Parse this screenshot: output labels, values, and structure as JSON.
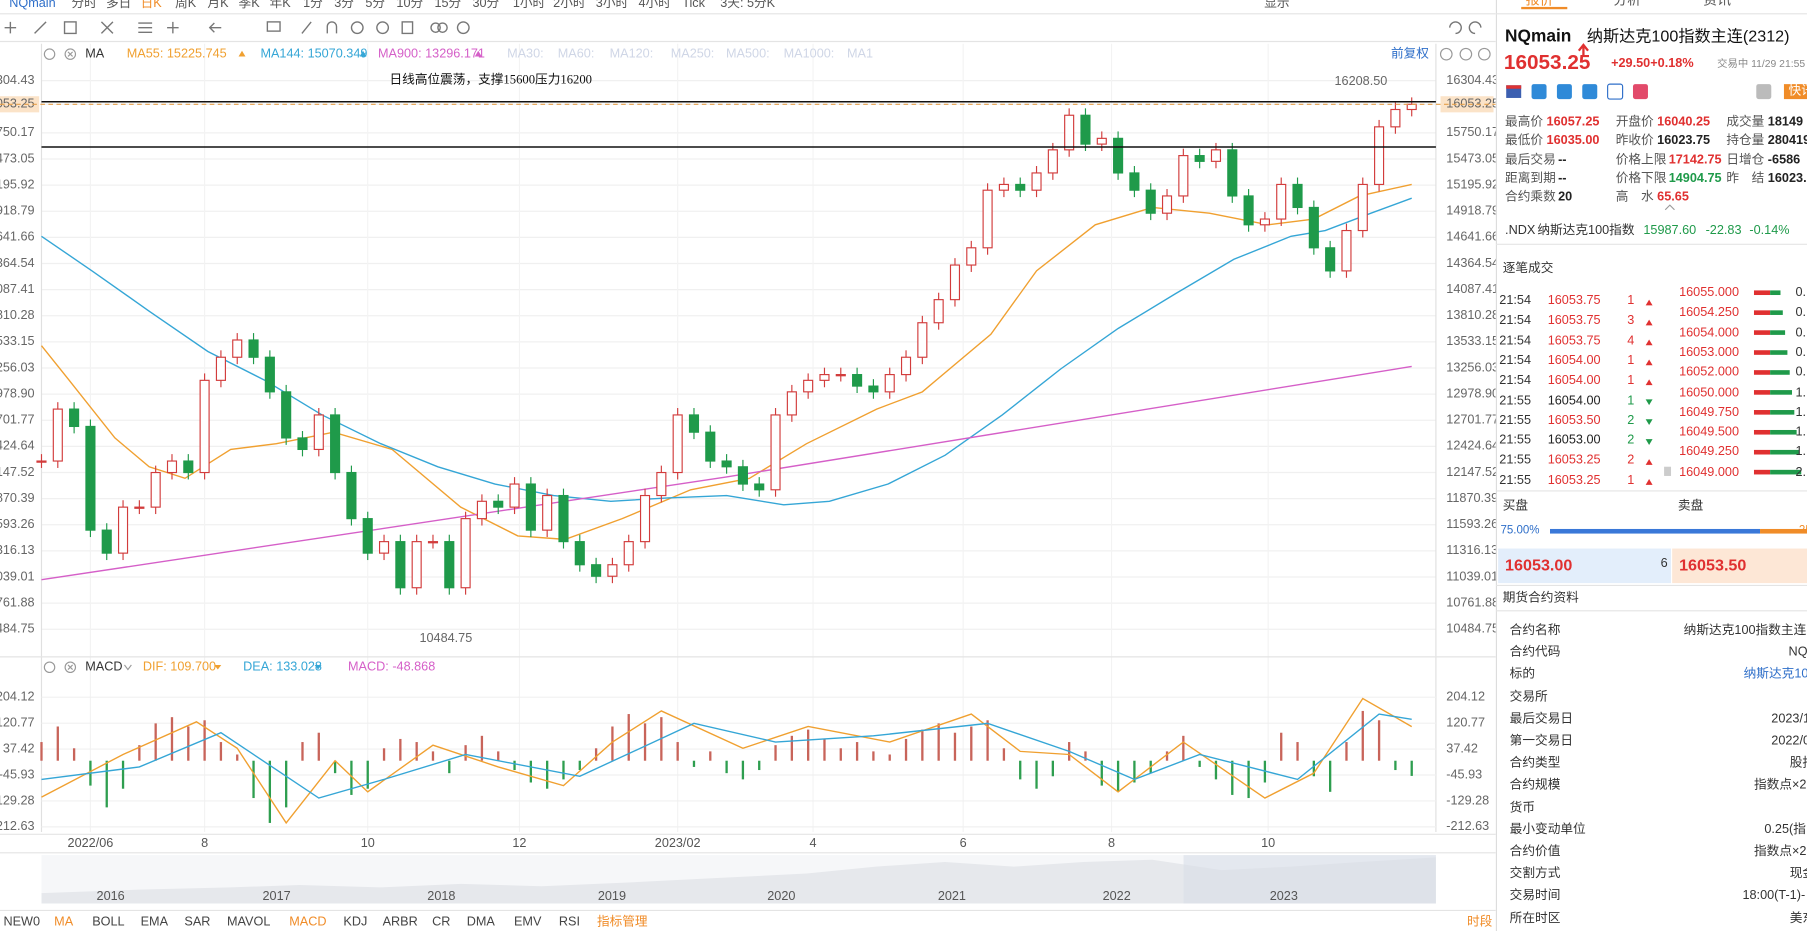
{
  "toolbar": {
    "symbol": "NQmain",
    "periods": [
      "分时",
      "多日",
      "日K",
      "周K",
      "月K",
      "季K",
      "年K",
      "1分",
      "3分",
      "5分",
      "10分",
      "15分",
      "30分",
      "1小时",
      "2小时",
      "3小时",
      "4小时",
      "Tick",
      "3天: 5分K"
    ],
    "active_period": "日K",
    "display": "显示"
  },
  "chart_data": [
    {
      "type": "candle",
      "ma_title": "MA",
      "adjust": "前复权",
      "annotation": "日线高位震荡，支撑15600压力16200",
      "high_label": "16208.50",
      "low_label": "10484.75",
      "up_color": "#d23c3c",
      "down_color": "#1f9a4a",
      "ylim": [
        10216,
        16695
      ],
      "yticks": [
        16304.43,
        16053.25,
        15750.17,
        15473.05,
        15195.92,
        14918.79,
        14641.66,
        14364.54,
        14087.41,
        13810.28,
        13533.15,
        13256.03,
        {
          "value": 12978.9,
          "label": "12978.90"
        },
        12701.77,
        12424.64,
        12147.52,
        11870.39,
        11593.26,
        11316.13,
        11039.01,
        10761.88,
        10484.75
      ],
      "xlim": [
        0,
        84
      ],
      "xticks": [
        {
          "value": 3,
          "label": "2022/06"
        },
        {
          "value": 10,
          "label": "8"
        },
        {
          "value": 20,
          "label": "10"
        },
        {
          "value": 29.3,
          "label": "12"
        },
        {
          "value": 39,
          "label": "2023/02"
        },
        {
          "value": 47.3,
          "label": "4"
        },
        {
          "value": 56.5,
          "label": "6"
        },
        {
          "value": 65.6,
          "label": "8"
        },
        {
          "value": 75.2,
          "label": "10"
        }
      ],
      "grid": true,
      "price_line": 16053.25,
      "price_line_color": "#e6a04a",
      "hlines": [
        16080,
        15600
      ],
      "values": [
        12269,
        12820,
        12636,
        11536,
        11292,
        11780,
        11780,
        12147,
        12269,
        12147,
        13125,
        13370,
        13553,
        13370,
        13003,
        12514,
        12392,
        12758,
        12147,
        11658,
        11292,
        11414,
        10925,
        11414,
        11414,
        10925,
        11658,
        11842,
        11780,
        12025,
        11536,
        11903,
        11414,
        11169,
        11047,
        11169,
        11414,
        11903,
        12147,
        12758,
        12575,
        12269,
        12208,
        12025,
        11964,
        12758,
        13003,
        13125,
        13186,
        13186,
        13064,
        13003,
        13186,
        13370,
        13736,
        13981,
        14348,
        14531,
        15142,
        15203,
        15142,
        15325,
        15570,
        15937,
        15631,
        15692,
        15325,
        15142,
        14898,
        15081,
        15509,
        15448,
        15570,
        15081,
        14775,
        14836,
        15203,
        14959,
        14531,
        14286,
        14714,
        15203,
        15814,
        15998,
        16053.25
      ],
      "ma_lines": [
        {
          "label": "MA55: 15225.745",
          "color": "#f0a030",
          "x": [
            0,
            1.7,
            4.5,
            6.6,
            8.8,
            11.6,
            14.4,
            17.9,
            21.5,
            25.7,
            29.2,
            32.1,
            35.6,
            39.8,
            43.4,
            46.9,
            51.2,
            54,
            58.2,
            61,
            64.6,
            68.1,
            71.6,
            75.2,
            78,
            80.8,
            84
          ],
          "values": [
            13492,
            13125,
            12514,
            12208,
            12086,
            12392,
            12453,
            12575,
            12392,
            11780,
            11475,
            11438,
            11658,
            11964,
            12086,
            12453,
            12820,
            13003,
            13614,
            14286,
            14775,
            14959,
            14898,
            14775,
            14836,
            15081,
            15203
          ]
        },
        {
          "label": "MA144: 15070.349",
          "color": "#35a6d6",
          "x": [
            0,
            3.1,
            6.6,
            10.2,
            13.7,
            17.2,
            20.8,
            24.3,
            27.8,
            31.4,
            34.9,
            38.4,
            42,
            45.5,
            48.3,
            51.9,
            55.4,
            58.9,
            62.5,
            66,
            69.5,
            73.1,
            76.6,
            78.7,
            81.5,
            84
          ],
          "values": [
            14653,
            14286,
            13859,
            13431,
            13125,
            12758,
            12453,
            12208,
            12025,
            11903,
            11842,
            11878,
            11903,
            11805,
            11842,
            12025,
            12331,
            12758,
            13248,
            13675,
            14042,
            14409,
            14653,
            14714,
            14898,
            15057
          ]
        },
        {
          "label": "MA900: 13296.171",
          "color": "#d55fc8",
          "x": [
            0,
            42,
            84
          ],
          "values": [
            11010,
            12100,
            13272
          ]
        }
      ],
      "ma_inactive": [
        "MA30:",
        "MA60:",
        "MA120:",
        "MA250:",
        "MA500:",
        "MA1000:",
        "MA1"
      ]
    },
    {
      "type": "macd",
      "title": "MACD",
      "ylim": [
        -229.3,
        259.7
      ],
      "yticks": [
        204.12,
        120.77,
        37.42,
        -45.93,
        -129.28,
        -212.63
      ],
      "xlim": [
        0,
        84
      ],
      "lines": [
        {
          "label": "DIF: 109.700",
          "color": "#f0a030",
          "x": [
            0,
            5,
            9.5,
            12,
            15,
            18,
            20,
            24,
            28,
            32,
            35,
            38,
            43,
            47,
            52,
            57,
            60,
            63,
            66,
            70,
            75,
            78,
            81,
            84
          ],
          "values": [
            -117,
            20,
            125,
            40,
            -200,
            0,
            -100,
            50,
            -20,
            -80,
            60,
            160,
            40,
            110,
            60,
            150,
            30,
            20,
            -100,
            60,
            -120,
            -40,
            200,
            109.7
          ]
        },
        {
          "label": "DEA: 133.028",
          "color": "#35a6d6",
          "x": [
            0,
            6,
            11,
            17,
            21,
            26,
            33,
            40,
            45,
            51,
            58,
            63,
            67,
            71,
            77,
            82,
            84
          ],
          "values": [
            -60,
            -20,
            90,
            -120,
            -60,
            20,
            -50,
            120,
            60,
            80,
            120,
            30,
            -60,
            20,
            -60,
            150,
            133.028
          ]
        }
      ],
      "histogram": {
        "label": "MACD: -48.868",
        "label_color": "#d55fc8",
        "up_color": "#c8645a",
        "down_color": "#2e9e4f",
        "values": [
          60,
          110,
          40,
          -80,
          -150,
          -90,
          50,
          120,
          140,
          110,
          130,
          60,
          20,
          -120,
          -200,
          -150,
          60,
          90,
          -40,
          -110,
          -90,
          40,
          70,
          60,
          30,
          -40,
          50,
          80,
          30,
          -30,
          -70,
          -90,
          -60,
          -30,
          40,
          110,
          150,
          120,
          140,
          60,
          -20,
          30,
          -40,
          -60,
          -30,
          50,
          80,
          100,
          70,
          40,
          60,
          30,
          20,
          70,
          100,
          120,
          90,
          110,
          130,
          40,
          -60,
          -90,
          -50,
          60,
          30,
          -80,
          -100,
          -70,
          -40,
          30,
          80,
          -20,
          -60,
          -110,
          -120,
          -70,
          90,
          60,
          -50,
          -100,
          60,
          160,
          130,
          -30,
          -48.868
        ]
      }
    }
  ],
  "overview": {
    "years": [
      "2016",
      "2017",
      "2018",
      "2019",
      "2020",
      "2021",
      "2022",
      "2023"
    ]
  },
  "indicators": {
    "items": [
      "NEW0",
      "MA",
      "BOLL",
      "EMA",
      "SAR",
      "MAVOL",
      "MACD",
      "KDJ",
      "ARBR",
      "CR",
      "DMA",
      "EMV",
      "RSI"
    ],
    "active": [
      "MA",
      "MACD"
    ],
    "manage": "指标管理",
    "session": "时段"
  },
  "quote": {
    "tabs": [
      "报价",
      "分析",
      "资讯"
    ],
    "symbol": "NQmain",
    "name": "纳斯达克100指数主连(2312)",
    "price": "16053.25",
    "change": "+29.50",
    "change_pct": "+0.18%",
    "status": "交易中 11/29 21:55",
    "quick_news": "快讯",
    "stats": [
      [
        {
          "label": "最高价",
          "value": "16057.25",
          "color": "#e03030"
        },
        {
          "label": "开盘价",
          "value": "16040.25",
          "color": "#e03030"
        },
        {
          "label": "成交量",
          "value": "18149",
          "color": "#222"
        }
      ],
      [
        {
          "label": "最低价",
          "value": "16035.00",
          "color": "#e03030"
        },
        {
          "label": "昨收价",
          "value": "16023.75",
          "color": "#222"
        },
        {
          "label": "持仓量",
          "value": "280419",
          "color": "#222"
        }
      ],
      [
        {
          "label": "最后交易",
          "value": "--",
          "color": "#222"
        },
        {
          "label": "价格上限",
          "value": "17142.75",
          "color": "#e03030"
        },
        {
          "label": "日增仓",
          "value": "-6586",
          "color": "#222"
        }
      ],
      [
        {
          "label": "距离到期",
          "value": "--",
          "color": "#222"
        },
        {
          "label": "价格下限",
          "value": "14904.75",
          "color": "#1f9a4a"
        },
        {
          "label": "昨　结",
          "value": "16023.75",
          "color": "#222"
        }
      ],
      [
        {
          "label": "合约乘数",
          "value": "20",
          "color": "#222"
        },
        {
          "label": "高　水",
          "value": "65.65",
          "color": "#e03030"
        }
      ]
    ],
    "index": {
      "code": ".NDX",
      "name": "纳斯达克100指数",
      "price": "15987.60",
      "change": "-22.83",
      "change_pct": "-0.14%",
      "color": "#1f9a4a"
    }
  },
  "trades": {
    "title": "逐笔成交",
    "rows": [
      {
        "time": "21:54",
        "price": "16053.75",
        "qty": "1",
        "arrow": "up",
        "color": "#e03030"
      },
      {
        "time": "21:54",
        "price": "16053.75",
        "qty": "3",
        "arrow": "up",
        "color": "#e03030"
      },
      {
        "time": "21:54",
        "price": "16053.75",
        "qty": "4",
        "arrow": "up",
        "color": "#e03030"
      },
      {
        "time": "21:54",
        "price": "16054.00",
        "qty": "1",
        "arrow": "up",
        "color": "#e03030"
      },
      {
        "time": "21:54",
        "price": "16054.00",
        "qty": "1",
        "arrow": "up",
        "color": "#e03030"
      },
      {
        "time": "21:55",
        "price": "16054.00",
        "qty": "1",
        "arrow": "down",
        "color": "#222"
      },
      {
        "time": "21:55",
        "price": "16053.50",
        "qty": "2",
        "arrow": "down",
        "color": "#e03030"
      },
      {
        "time": "21:55",
        "price": "16053.00",
        "qty": "2",
        "arrow": "down",
        "color": "#222"
      },
      {
        "time": "21:55",
        "price": "16053.25",
        "qty": "2",
        "arrow": "up",
        "color": "#e03030"
      },
      {
        "time": "21:55",
        "price": "16053.25",
        "qty": "1",
        "arrow": "up",
        "color": "#e03030"
      }
    ],
    "levels": [
      {
        "price": "16055.000",
        "value": "0."
      },
      {
        "price": "16054.250",
        "value": "0."
      },
      {
        "price": "16054.000",
        "value": "0."
      },
      {
        "price": "16053.000",
        "value": "0."
      },
      {
        "price": "16052.000",
        "value": "0."
      },
      {
        "price": "16050.000",
        "value": "1."
      },
      {
        "price": "16049.750",
        "value": "1."
      },
      {
        "price": "16049.500",
        "value": "1."
      },
      {
        "price": "16049.250",
        "value": "1."
      },
      {
        "price": "16049.000",
        "value": "2."
      }
    ]
  },
  "order_book": {
    "bid_title": "买盘",
    "ask_title": "卖盘",
    "bid_share": {
      "value": 75,
      "label": "75.00%"
    },
    "ask_share": {
      "value": 25,
      "label": "25.00%"
    },
    "bid": "16053.00",
    "bid_size": "6",
    "ask": "16053.50"
  },
  "contract": {
    "title": "期货合约资料",
    "rows": [
      {
        "label": "合约名称",
        "value": "纳斯达克100指数主连("
      },
      {
        "label": "合约代码",
        "value": "NQ"
      },
      {
        "label": "标的",
        "value": "纳斯达克10",
        "color": "#2f6fc9"
      },
      {
        "label": "交易所"
      },
      {
        "label": "最后交易日",
        "value": "2023/1"
      },
      {
        "label": "第一交易日",
        "value": "2022/0"
      },
      {
        "label": "合约类型",
        "value": "股指"
      },
      {
        "label": "合约规模",
        "value": "指数点×2"
      },
      {
        "label": "货币"
      },
      {
        "label": "最小变动单位",
        "value": "0.25(指"
      },
      {
        "label": "合约价值",
        "value": "指数点×2"
      },
      {
        "label": "交割方式",
        "value": "现金"
      },
      {
        "label": "交易时间",
        "value": "18:00(T-1)-"
      },
      {
        "label": "所在时区",
        "value": "美东"
      }
    ]
  }
}
